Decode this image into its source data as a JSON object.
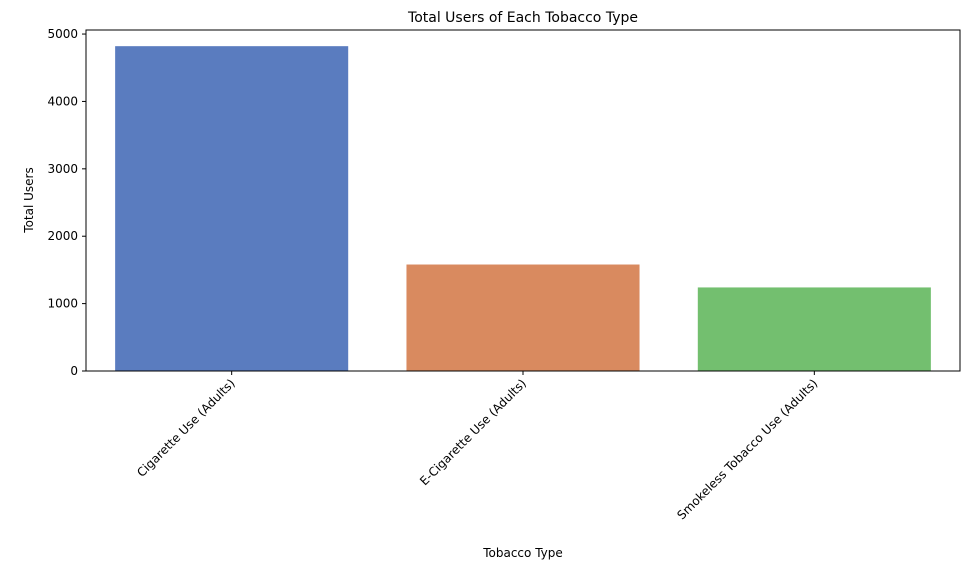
{
  "chart_data": {
    "type": "bar",
    "title": "Total Users of Each Tobacco Type",
    "xlabel": "Tobacco Type",
    "ylabel": "Total Users",
    "categories": [
      "Cigarette Use (Adults)",
      "E-Cigarette Use (Adults)",
      "Smokeless Tobacco Use (Adults)"
    ],
    "values": [
      4820,
      1580,
      1240
    ],
    "colors": [
      "#5a7cbf",
      "#d98a5f",
      "#73bf6f"
    ],
    "ylim": [
      0,
      5060
    ],
    "yticks": [
      0,
      1000,
      2000,
      3000,
      4000,
      5000
    ],
    "grid": false,
    "legend": false
  }
}
